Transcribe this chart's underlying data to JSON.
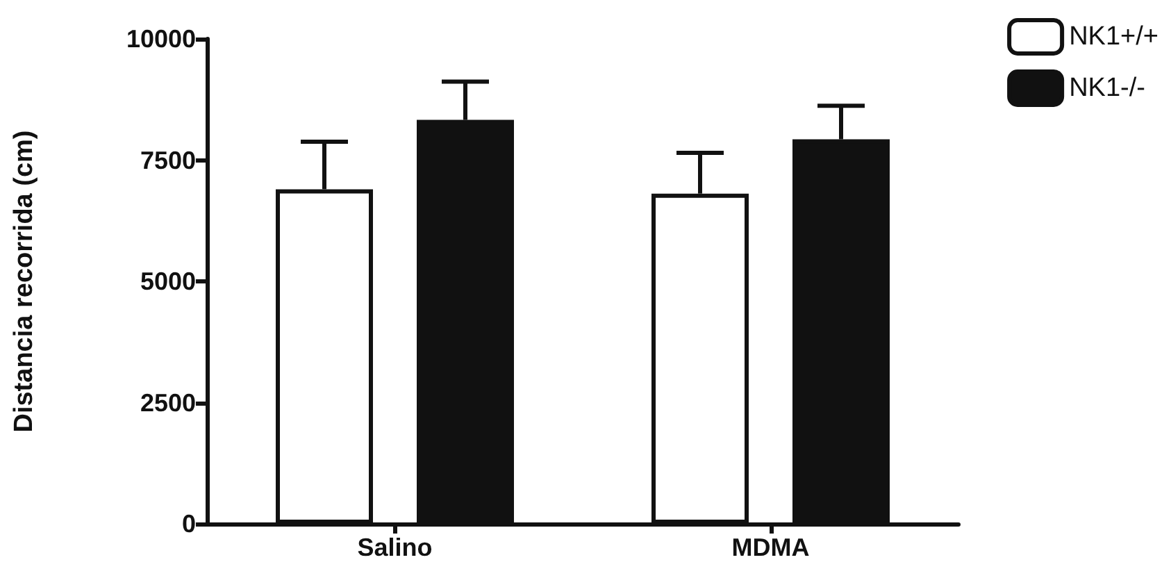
{
  "chart_data": {
    "type": "bar",
    "ylabel": "Distancia recorrida (cm)",
    "categories": [
      "Salino",
      "MDMA"
    ],
    "series": [
      {
        "name": "NK1+/+",
        "color": "#ffffff",
        "values": [
          6900,
          6810
        ],
        "errors": [
          [
            6900,
            7880
          ],
          [
            6810,
            7650
          ]
        ]
      },
      {
        "name": "NK1-/-",
        "color": "#111111",
        "values": [
          8330,
          7930
        ],
        "errors": [
          [
            8330,
            9120
          ],
          [
            7930,
            8620
          ]
        ]
      }
    ],
    "ylim": [
      0,
      10000
    ],
    "yticks": [
      0,
      2500,
      5000,
      7500,
      10000
    ],
    "grid": false,
    "legend": "top right"
  }
}
